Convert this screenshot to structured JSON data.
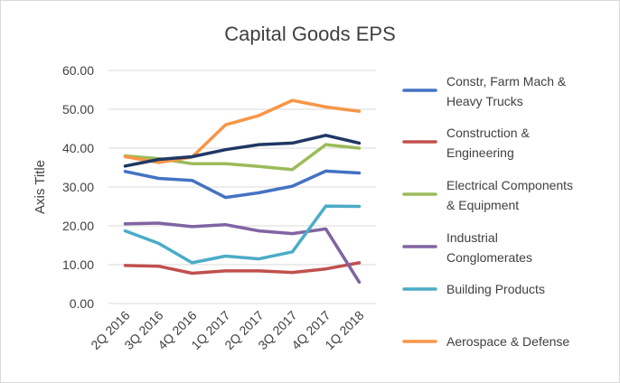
{
  "chart_data": {
    "type": "line",
    "title": "Capital Goods EPS",
    "xlabel": "",
    "ylabel": "Axis Title",
    "ylim": [
      0,
      60
    ],
    "yticks": [
      "0.00",
      "10.00",
      "20.00",
      "30.00",
      "40.00",
      "50.00",
      "60.00"
    ],
    "categories": [
      "2Q 2016",
      "3Q 2016",
      "4Q 2016",
      "1Q 2017",
      "2Q 2017",
      "3Q 2017",
      "4Q 2017",
      "1Q 2018"
    ],
    "grid": true,
    "legend_position": "right",
    "series": [
      {
        "name_lines": [
          "Constr, Farm Mach &",
          "Heavy Trucks"
        ],
        "color": "#4472c4",
        "values": [
          34.0,
          32.2,
          31.7,
          27.3,
          28.5,
          30.2,
          34.1,
          33.6
        ]
      },
      {
        "name_lines": [
          "Construction &",
          "Engineering"
        ],
        "color": "#c0504d",
        "values": [
          9.8,
          9.6,
          7.8,
          8.4,
          8.4,
          8.0,
          8.9,
          10.5
        ]
      },
      {
        "name_lines": [
          "Electrical Components",
          "& Equipment"
        ],
        "color": "#9bbb59",
        "values": [
          38.0,
          37.3,
          36.0,
          36.0,
          35.3,
          34.5,
          40.9,
          40.0
        ]
      },
      {
        "name_lines": [
          "Industrial",
          "Conglomerates"
        ],
        "color": "#8064a2",
        "values": [
          20.5,
          20.7,
          19.8,
          20.3,
          18.7,
          18.0,
          19.2,
          5.5
        ]
      },
      {
        "name_lines": [
          "Building Products"
        ],
        "color": "#4bacc6",
        "values": [
          18.7,
          15.5,
          10.5,
          12.2,
          11.5,
          13.3,
          25.1,
          25.0
        ]
      },
      {
        "name_lines": [
          "Aerospace & Defense"
        ],
        "color": "#f79646",
        "values": [
          37.8,
          36.3,
          37.7,
          46.0,
          48.4,
          52.3,
          50.6,
          49.5
        ]
      },
      {
        "name_lines": [],
        "color": "#1f3864",
        "values": [
          35.4,
          37.1,
          37.8,
          39.6,
          40.9,
          41.3,
          43.3,
          41.3
        ]
      }
    ]
  }
}
